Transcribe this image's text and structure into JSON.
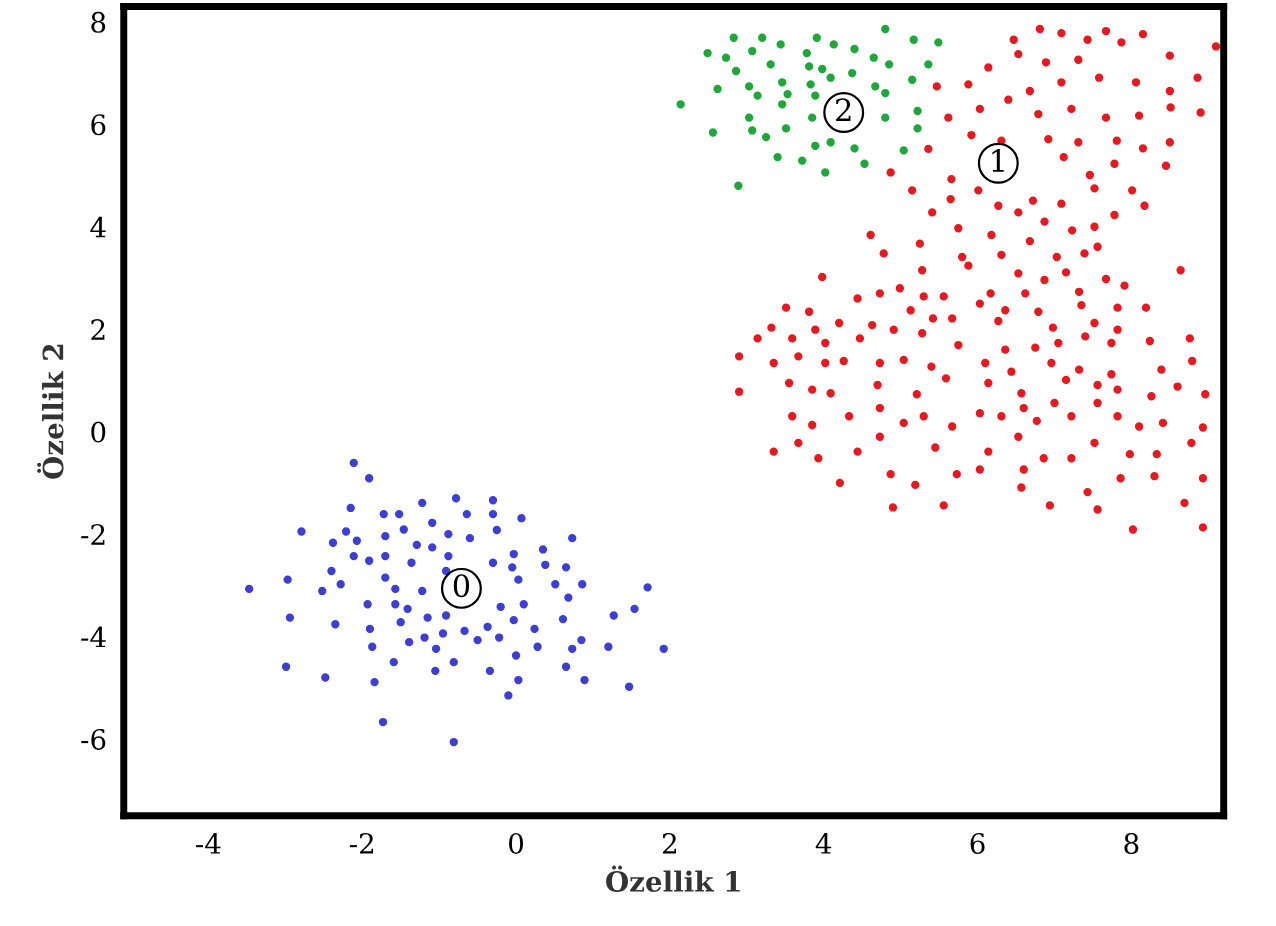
{
  "chart_data": {
    "type": "scatter",
    "xlabel": "Özellik 1",
    "ylabel": "Özellik 2",
    "xlim": [
      -5.1,
      9.2
    ],
    "ylim": [
      -7.5,
      8.3
    ],
    "xticks": [
      -4,
      -2,
      0,
      2,
      4,
      6,
      8
    ],
    "yticks": [
      -6,
      -4,
      -2,
      0,
      2,
      4,
      6,
      8
    ],
    "grid": false,
    "legend": false,
    "marker": "circle",
    "annotations": [
      {
        "text": "0",
        "x": -0.71,
        "y": -3.06
      },
      {
        "text": "1",
        "x": 6.27,
        "y": 5.24
      },
      {
        "text": "2",
        "x": 4.26,
        "y": 6.23
      }
    ],
    "series": [
      {
        "color": "#3b3fd6",
        "x": [
          -2.11,
          -1.91,
          -2.15,
          -1.22,
          -0.78,
          -0.3,
          -2.79,
          -2.21,
          -1.72,
          -1.52,
          -1.09,
          -0.64,
          -0.3,
          0.07,
          -0.25,
          -2.38,
          -2.07,
          -1.7,
          -1.46,
          -1.29,
          -1.09,
          -0.88,
          -0.6,
          0.73,
          0.35,
          -0.03,
          -2.11,
          -1.91,
          -1.7,
          -1.36,
          -0.88,
          -0.3,
          -0.05,
          0.38,
          0.65,
          -2.97,
          -2.4,
          -2.28,
          -1.7,
          -0.91,
          0.03,
          0.51,
          0.86,
          1.71,
          -3.47,
          -2.52,
          -1.57,
          -1.22,
          0.68,
          -1.93,
          -1.57,
          -1.41,
          -0.2,
          0.1,
          1.54,
          -2.94,
          -2.35,
          -1.5,
          -1.15,
          -0.91,
          -0.03,
          0.61,
          1.27,
          -1.9,
          -0.95,
          -0.67,
          -0.37,
          0.24,
          -1.39,
          -1.19,
          -0.5,
          -0.22,
          0.85,
          -1.87,
          -1.04,
          0.28,
          0.73,
          1.2,
          1.92,
          -1.59,
          -0.81,
          0.0,
          -2.99,
          -2.48,
          -1.84,
          -1.05,
          -0.34,
          0.03,
          0.65,
          0.89,
          1.47,
          -0.1,
          -1.73,
          -0.81
        ],
        "values": [
          -0.61,
          -0.91,
          -1.49,
          -1.39,
          -1.3,
          -1.34,
          -1.95,
          -1.95,
          -1.61,
          -1.61,
          -1.78,
          -1.61,
          -1.61,
          -1.69,
          -1.92,
          -2.17,
          -2.13,
          -2.04,
          -1.91,
          -2.21,
          -2.26,
          -2.0,
          -2.08,
          -2.08,
          -2.3,
          -2.39,
          -2.43,
          -2.52,
          -2.43,
          -2.56,
          -2.43,
          -2.56,
          -2.65,
          -2.6,
          -2.65,
          -2.89,
          -2.72,
          -2.98,
          -2.85,
          -2.72,
          -2.89,
          -2.98,
          -2.98,
          -3.04,
          -3.07,
          -3.11,
          -3.07,
          -3.11,
          -3.24,
          -3.37,
          -3.37,
          -3.46,
          -3.42,
          -3.37,
          -3.46,
          -3.63,
          -3.76,
          -3.72,
          -3.63,
          -3.59,
          -3.68,
          -3.66,
          -3.59,
          -3.85,
          -3.94,
          -3.89,
          -3.81,
          -3.85,
          -4.11,
          -4.02,
          -4.07,
          -4.02,
          -4.07,
          -4.2,
          -4.24,
          -4.2,
          -4.24,
          -4.2,
          -4.24,
          -4.5,
          -4.5,
          -4.37,
          -4.59,
          -4.8,
          -4.89,
          -4.67,
          -4.67,
          -4.85,
          -4.59,
          -4.85,
          -4.98,
          -5.15,
          -5.67,
          -6.06
        ]
      },
      {
        "color": "#e8191e",
        "x": [
          6.47,
          6.81,
          7.09,
          7.43,
          7.67,
          8.15,
          9.1,
          6.14,
          6.53,
          6.89,
          7.31,
          7.87,
          8.5,
          8.86,
          5.47,
          5.88,
          6.68,
          7.09,
          7.58,
          8.06,
          8.5,
          5.62,
          6.03,
          6.4,
          6.79,
          7.22,
          7.67,
          8.1,
          8.51,
          8.9,
          5.36,
          5.92,
          6.31,
          6.92,
          7.31,
          7.81,
          8.15,
          8.5,
          4.87,
          5.66,
          6.01,
          6.42,
          7.12,
          7.46,
          7.78,
          8.45,
          5.15,
          5.65,
          6.27,
          6.72,
          7.09,
          7.52,
          8.01,
          8.17,
          5.41,
          5.75,
          6.18,
          6.53,
          6.87,
          7.23,
          7.52,
          7.78,
          4.61,
          5.25,
          5.8,
          6.31,
          6.68,
          7.03,
          7.39,
          7.56,
          4.78,
          3.98,
          5.28,
          5.88,
          6.53,
          6.87,
          7.15,
          7.67,
          8.64,
          4.44,
          4.99,
          5.3,
          5.56,
          6.17,
          6.62,
          7.32,
          7.91,
          3.51,
          3.81,
          4.73,
          5.13,
          5.42,
          6.03,
          6.36,
          6.79,
          7.35,
          7.82,
          8.19,
          3.32,
          3.89,
          4.2,
          4.63,
          4.91,
          5.28,
          5.67,
          6.27,
          6.98,
          7.52,
          7.82,
          3.14,
          3.59,
          4.02,
          4.47,
          5.75,
          6.36,
          6.75,
          7.05,
          7.4,
          7.74,
          8.24,
          8.76,
          2.9,
          3.35,
          3.67,
          4.02,
          4.26,
          4.73,
          5.04,
          5.4,
          6.1,
          6.44,
          6.96,
          7.32,
          7.74,
          8.39,
          8.79,
          2.9,
          3.55,
          3.85,
          4.09,
          4.7,
          5.21,
          5.59,
          6.14,
          6.57,
          7.15,
          7.56,
          7.82,
          8.26,
          8.6,
          8.96,
          3.59,
          3.85,
          4.33,
          4.73,
          5.04,
          5.3,
          5.67,
          6.03,
          6.31,
          6.6,
          6.77,
          7.0,
          7.22,
          7.56,
          7.82,
          8.1,
          8.41,
          8.93,
          3.35,
          3.67,
          3.93,
          4.44,
          4.73,
          5.45,
          6.14,
          6.53,
          6.86,
          7.22,
          7.52,
          7.98,
          8.33,
          8.78,
          4.21,
          4.87,
          5.19,
          5.73,
          6.03,
          6.6,
          6.94,
          7.43,
          7.86,
          8.3,
          8.93,
          4.9,
          5.56,
          6.57,
          7.56,
          8.02,
          8.93,
          8.69
        ],
        "values": [
          7.65,
          7.86,
          7.78,
          7.65,
          7.82,
          7.76,
          7.52,
          7.11,
          7.37,
          7.21,
          7.26,
          7.6,
          7.34,
          6.91,
          6.74,
          6.78,
          6.65,
          6.82,
          6.91,
          6.82,
          6.65,
          6.13,
          6.3,
          6.48,
          6.2,
          6.3,
          6.13,
          6.17,
          6.33,
          6.23,
          5.52,
          5.79,
          5.68,
          5.71,
          5.65,
          5.68,
          5.53,
          5.65,
          5.06,
          4.93,
          4.71,
          null,
          5.36,
          5.01,
          5.23,
          5.19,
          4.71,
          4.54,
          4.41,
          4.51,
          4.45,
          4.75,
          4.71,
          4.41,
          4.28,
          3.97,
          3.84,
          4.28,
          4.1,
          3.93,
          4.0,
          4.23,
          3.84,
          3.67,
          3.41,
          3.45,
          3.72,
          3.41,
          3.48,
          3.61,
          3.48,
          3.02,
          3.15,
          3.24,
          3.09,
          2.96,
          3.11,
          2.98,
          3.15,
          2.6,
          2.8,
          2.64,
          2.64,
          2.7,
          2.7,
          2.73,
          2.85,
          2.42,
          2.34,
          2.7,
          2.37,
          2.21,
          2.5,
          2.37,
          2.34,
          2.47,
          2.42,
          2.42,
          2.03,
          1.99,
          2.12,
          2.08,
          1.99,
          1.92,
          2.21,
          2.16,
          2.03,
          2.12,
          1.99,
          1.82,
          1.82,
          1.73,
          1.82,
          1.69,
          1.6,
          1.64,
          1.73,
          1.86,
          1.73,
          1.77,
          1.82,
          1.47,
          1.34,
          1.47,
          1.34,
          1.38,
          1.34,
          1.4,
          1.27,
          1.34,
          1.17,
          1.34,
          1.21,
          1.12,
          1.21,
          1.38,
          0.78,
          0.95,
          0.82,
          0.75,
          0.91,
          0.73,
          1.04,
          0.95,
          0.75,
          1.01,
          0.91,
          0.82,
          0.69,
          0.88,
          0.73,
          0.3,
          0.13,
          0.3,
          0.46,
          0.17,
          0.3,
          0.1,
          0.36,
          0.3,
          0.46,
          0.21,
          0.56,
          0.3,
          0.56,
          0.3,
          0.1,
          0.17,
          0.08,
          -0.39,
          -0.22,
          -0.52,
          -0.39,
          -0.1,
          -0.31,
          -0.39,
          -0.1,
          -0.52,
          -0.52,
          -0.22,
          -0.44,
          -0.44,
          -0.22,
          -1.0,
          -0.83,
          -1.04,
          -0.83,
          -0.74,
          -0.74,
          -1.44,
          -1.18,
          -0.91,
          -0.87,
          -0.91,
          -1.48,
          -1.44,
          -1.09,
          -1.52,
          -1.91,
          -1.87,
          -1.39
        ]
      },
      {
        "color": "#1fa83a",
        "x": [
          2.83,
          3.2,
          3.91,
          4.8,
          5.17,
          5.49,
          2.49,
          2.73,
          3.07,
          3.44,
          3.78,
          4.13,
          4.4,
          4.65,
          4.85,
          5.36,
          2.86,
          3.31,
          3.81,
          3.98,
          4.37,
          2.62,
          3.03,
          3.46,
          3.83,
          4.09,
          4.67,
          5.15,
          3.14,
          3.53,
          3.89,
          4.38,
          4.8,
          2.14,
          3.46,
          3.03,
          3.85,
          4.8,
          5.22,
          2.56,
          3.07,
          3.25,
          3.51,
          4.09,
          5.22,
          3.89,
          4.4,
          5.04,
          3.4,
          3.72,
          4.53,
          4.02,
          2.89
        ],
        "values": [
          7.69,
          7.69,
          7.69,
          7.86,
          7.65,
          7.6,
          7.39,
          7.3,
          7.43,
          7.56,
          7.39,
          7.56,
          7.47,
          7.3,
          7.17,
          7.17,
          7.04,
          7.17,
          7.13,
          7.08,
          7.0,
          6.69,
          6.74,
          6.82,
          6.78,
          6.91,
          6.74,
          6.87,
          6.56,
          6.59,
          6.56,
          null,
          6.61,
          6.39,
          6.39,
          6.13,
          6.13,
          6.13,
          6.26,
          5.84,
          5.88,
          5.75,
          5.92,
          5.65,
          5.92,
          5.58,
          5.53,
          5.49,
          5.36,
          5.29,
          5.23,
          5.06,
          4.8
        ]
      }
    ]
  }
}
